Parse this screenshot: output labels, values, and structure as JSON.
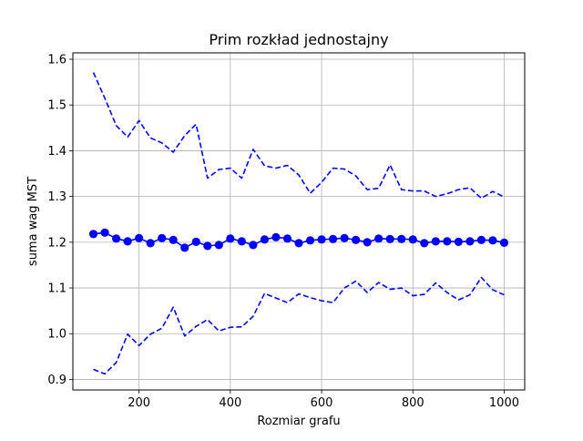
{
  "chart_data": {
    "type": "line",
    "title": "Prim rozkład jednostajny",
    "xlabel": "Rozmiar grafu",
    "ylabel": "suma wag MST",
    "xlim": [
      55,
      1045
    ],
    "ylim": [
      0.877,
      1.614
    ],
    "x_ticks": [
      200,
      400,
      600,
      800,
      1000
    ],
    "y_ticks": [
      0.9,
      1.0,
      1.1,
      1.2,
      1.3,
      1.4,
      1.5,
      1.6
    ],
    "grid": true,
    "x": [
      100,
      125,
      150,
      175,
      200,
      225,
      250,
      275,
      300,
      325,
      350,
      375,
      400,
      425,
      450,
      475,
      500,
      525,
      550,
      575,
      600,
      625,
      650,
      675,
      700,
      725,
      750,
      775,
      800,
      825,
      850,
      875,
      900,
      925,
      950,
      975,
      1000
    ],
    "series": [
      {
        "key": "mean",
        "style": "solid-markers",
        "color": "#0000ff",
        "values": [
          1.218,
          1.221,
          1.208,
          1.202,
          1.209,
          1.198,
          1.209,
          1.205,
          1.188,
          1.201,
          1.192,
          1.194,
          1.208,
          1.202,
          1.194,
          1.206,
          1.211,
          1.208,
          1.198,
          1.204,
          1.206,
          1.207,
          1.209,
          1.205,
          1.2,
          1.208,
          1.207,
          1.207,
          1.206,
          1.198,
          1.202,
          1.202,
          1.201,
          1.202,
          1.205,
          1.204,
          1.199
        ]
      },
      {
        "key": "upper",
        "style": "dashed",
        "color": "#0000ff",
        "values": [
          1.571,
          1.515,
          1.455,
          1.43,
          1.466,
          1.428,
          1.417,
          1.397,
          1.433,
          1.458,
          1.34,
          1.359,
          1.362,
          1.34,
          1.403,
          1.367,
          1.362,
          1.368,
          1.347,
          1.307,
          1.331,
          1.362,
          1.36,
          1.345,
          1.315,
          1.318,
          1.369,
          1.315,
          1.312,
          1.312,
          1.3,
          1.306,
          1.315,
          1.319,
          1.296,
          1.311,
          1.299
        ]
      },
      {
        "key": "lower",
        "style": "dashed",
        "color": "#0000ff",
        "values": [
          0.922,
          0.912,
          0.937,
          0.999,
          0.974,
          0.999,
          1.012,
          1.058,
          0.995,
          1.016,
          1.031,
          1.006,
          1.014,
          1.015,
          1.038,
          1.088,
          1.078,
          1.068,
          1.087,
          1.079,
          1.072,
          1.068,
          1.1,
          1.115,
          1.09,
          1.112,
          1.097,
          1.1,
          1.083,
          1.086,
          1.111,
          1.09,
          1.074,
          1.085,
          1.123,
          1.096,
          1.085
        ]
      }
    ]
  }
}
